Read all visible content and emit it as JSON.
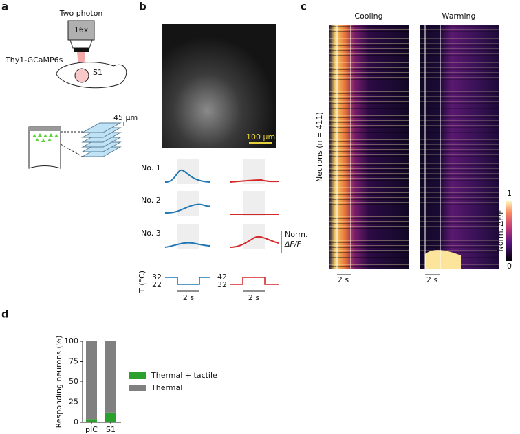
{
  "panels": {
    "a": {
      "label": "a",
      "microscope": "Two photon",
      "objective": "16x",
      "mouse": "Thy1-GCaMP6s",
      "area": "S1",
      "depth": "45 µm"
    },
    "b": {
      "label": "b",
      "scale": "100 µm",
      "rows": [
        "No. 1",
        "No. 2",
        "No. 3"
      ],
      "norm": "Norm.",
      "dff": "ΔF/F",
      "temp_label": "T (°C)",
      "cool_ticks": [
        32,
        22
      ],
      "warm_ticks": [
        42,
        32
      ],
      "time": [
        "2 s",
        "2 s"
      ]
    },
    "c": {
      "label": "c",
      "titles": [
        "Cooling",
        "Warming"
      ],
      "ylabel": "Neurons (n = 411)",
      "cbar_ticks": [
        1,
        0
      ],
      "cbar_label": "Norm. ΔF/F",
      "time": [
        "2 s",
        "2 s"
      ]
    },
    "d": {
      "label": "d"
    }
  },
  "chart_data": {
    "type": "bar",
    "stacked": true,
    "ylabel": "Responding neurons (%)",
    "categories": [
      "pIC",
      "S1"
    ],
    "series": [
      {
        "name": "Thermal + tactile",
        "color": "#2ca02c",
        "values": [
          4,
          12
        ]
      },
      {
        "name": "Thermal",
        "color": "#808080",
        "values": [
          96,
          88
        ]
      }
    ],
    "ylim": [
      0,
      100
    ],
    "yticks": [
      0,
      25,
      50,
      75,
      100
    ]
  }
}
